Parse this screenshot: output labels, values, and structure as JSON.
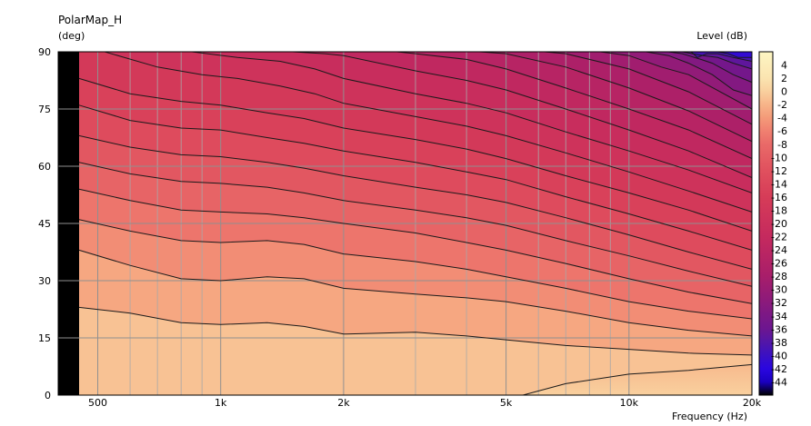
{
  "chart_data": {
    "type": "heatmap",
    "title": "PolarMap_H",
    "ylabel": "(deg)",
    "xlabel": "Frequency  (Hz)",
    "colorbar_label": "Level  (dB)",
    "x_scale": "log",
    "xlim": [
      400,
      20000
    ],
    "ylim": [
      0,
      90
    ],
    "x_ticks": [
      {
        "value": 500,
        "label": "500"
      },
      {
        "value": 1000,
        "label": "1k"
      },
      {
        "value": 2000,
        "label": "2k"
      },
      {
        "value": 5000,
        "label": "5k"
      },
      {
        "value": 10000,
        "label": "10k"
      },
      {
        "value": 20000,
        "label": "20k"
      }
    ],
    "x_minor_gridlines": [
      600,
      700,
      800,
      900,
      3000,
      4000,
      6000,
      7000,
      8000,
      9000
    ],
    "y_ticks": [
      {
        "value": 0,
        "label": "0"
      },
      {
        "value": 15,
        "label": "15"
      },
      {
        "value": 30,
        "label": "30"
      },
      {
        "value": 45,
        "label": "45"
      },
      {
        "value": 60,
        "label": "60"
      },
      {
        "value": 75,
        "label": "75"
      },
      {
        "value": 90,
        "label": "90"
      }
    ],
    "grid": true,
    "no_data_below_hz": 450,
    "contour_levels_db": [
      4,
      2,
      0,
      -2,
      -4,
      -6,
      -8,
      -10,
      -12,
      -14,
      -16,
      -18,
      -20,
      -22,
      -24,
      -26,
      -28,
      -30,
      -32,
      -34,
      -36,
      -38,
      -40,
      -42,
      -44
    ],
    "colorbar_top_db": 6,
    "colorbar_bottom_db": -46,
    "colorbar_stops": [
      {
        "db": 6,
        "color": "#fdf6c3"
      },
      {
        "db": 2,
        "color": "#fbe4b0"
      },
      {
        "db": 0,
        "color": "#f9d09e"
      },
      {
        "db": -2,
        "color": "#f7b489"
      },
      {
        "db": -4,
        "color": "#f49a79"
      },
      {
        "db": -6,
        "color": "#f08070"
      },
      {
        "db": -8,
        "color": "#e96a68"
      },
      {
        "db": -12,
        "color": "#e0505e"
      },
      {
        "db": -16,
        "color": "#d63c58"
      },
      {
        "db": -22,
        "color": "#c52a5e"
      },
      {
        "db": -28,
        "color": "#a81e6a"
      },
      {
        "db": -32,
        "color": "#8a1a7c"
      },
      {
        "db": -36,
        "color": "#6c1690"
      },
      {
        "db": -38,
        "color": "#5216a8"
      },
      {
        "db": -40,
        "color": "#3a10c4"
      },
      {
        "db": -42,
        "color": "#2a06e0"
      },
      {
        "db": -44,
        "color": "#1a00c0"
      },
      {
        "db": -46,
        "color": "#000000"
      }
    ],
    "contours": [
      {
        "level_db": 0,
        "points": [
          [
            5500,
            0
          ],
          [
            7000,
            3
          ],
          [
            10000,
            5.5
          ],
          [
            14000,
            6.5
          ],
          [
            20000,
            8
          ]
        ]
      },
      {
        "level_db": -2,
        "points": [
          [
            450,
            23
          ],
          [
            600,
            21.5
          ],
          [
            800,
            19
          ],
          [
            1000,
            18.5
          ],
          [
            1300,
            19
          ],
          [
            1600,
            18
          ],
          [
            2000,
            16
          ],
          [
            3000,
            16.5
          ],
          [
            4000,
            15.5
          ],
          [
            5000,
            14.5
          ],
          [
            7000,
            13
          ],
          [
            10000,
            12
          ],
          [
            14000,
            11
          ],
          [
            20000,
            10.5
          ]
        ]
      },
      {
        "level_db": -4,
        "points": [
          [
            450,
            38
          ],
          [
            600,
            34
          ],
          [
            800,
            30.5
          ],
          [
            1000,
            30
          ],
          [
            1300,
            31
          ],
          [
            1600,
            30.5
          ],
          [
            2000,
            28
          ],
          [
            3000,
            26.5
          ],
          [
            4000,
            25.5
          ],
          [
            5000,
            24.5
          ],
          [
            7000,
            22
          ],
          [
            10000,
            19
          ],
          [
            14000,
            17
          ],
          [
            20000,
            15.5
          ]
        ]
      },
      {
        "level_db": -6,
        "points": [
          [
            450,
            46
          ],
          [
            600,
            43
          ],
          [
            800,
            40.5
          ],
          [
            1000,
            40
          ],
          [
            1300,
            40.5
          ],
          [
            1600,
            39.5
          ],
          [
            2000,
            37
          ],
          [
            3000,
            35
          ],
          [
            4000,
            33
          ],
          [
            5000,
            31
          ],
          [
            7000,
            28
          ],
          [
            10000,
            24.5
          ],
          [
            14000,
            22
          ],
          [
            20000,
            20
          ]
        ]
      },
      {
        "level_db": -8,
        "points": [
          [
            450,
            54
          ],
          [
            600,
            51
          ],
          [
            800,
            48.5
          ],
          [
            1000,
            48
          ],
          [
            1300,
            47.5
          ],
          [
            1600,
            46.5
          ],
          [
            2000,
            45
          ],
          [
            3000,
            42.5
          ],
          [
            4000,
            40
          ],
          [
            5000,
            38
          ],
          [
            7000,
            34.5
          ],
          [
            10000,
            30.5
          ],
          [
            14000,
            27
          ],
          [
            20000,
            24
          ]
        ]
      },
      {
        "level_db": -10,
        "points": [
          [
            450,
            61
          ],
          [
            600,
            58
          ],
          [
            800,
            56
          ],
          [
            1000,
            55.5
          ],
          [
            1300,
            54.5
          ],
          [
            1600,
            53
          ],
          [
            2000,
            51
          ],
          [
            3000,
            48.5
          ],
          [
            4000,
            46.5
          ],
          [
            5000,
            44.5
          ],
          [
            7000,
            40.5
          ],
          [
            10000,
            36.5
          ],
          [
            14000,
            32.5
          ],
          [
            20000,
            28.5
          ]
        ]
      },
      {
        "level_db": -12,
        "points": [
          [
            450,
            68
          ],
          [
            600,
            65
          ],
          [
            800,
            63
          ],
          [
            1000,
            62.5
          ],
          [
            1300,
            61
          ],
          [
            1600,
            59.5
          ],
          [
            2000,
            57.5
          ],
          [
            3000,
            54.5
          ],
          [
            4000,
            52.5
          ],
          [
            5000,
            50.5
          ],
          [
            7000,
            46.5
          ],
          [
            10000,
            42
          ],
          [
            14000,
            37.5
          ],
          [
            20000,
            33
          ]
        ]
      },
      {
        "level_db": -14,
        "points": [
          [
            450,
            76
          ],
          [
            600,
            72
          ],
          [
            800,
            70
          ],
          [
            1000,
            69.5
          ],
          [
            1300,
            67.5
          ],
          [
            1600,
            66
          ],
          [
            2000,
            64
          ],
          [
            3000,
            61
          ],
          [
            4000,
            58.5
          ],
          [
            5000,
            56.5
          ],
          [
            7000,
            52
          ],
          [
            10000,
            47.5
          ],
          [
            14000,
            43
          ],
          [
            20000,
            38
          ]
        ]
      },
      {
        "level_db": -16,
        "points": [
          [
            450,
            83
          ],
          [
            600,
            79
          ],
          [
            800,
            77
          ],
          [
            1000,
            76
          ],
          [
            1300,
            74
          ],
          [
            1600,
            72.5
          ],
          [
            2000,
            70
          ],
          [
            3000,
            67
          ],
          [
            4000,
            64.5
          ],
          [
            5000,
            62
          ],
          [
            7000,
            57.5
          ],
          [
            10000,
            53
          ],
          [
            14000,
            48.5
          ],
          [
            20000,
            43
          ]
        ]
      },
      {
        "level_db": -18,
        "points": [
          [
            520,
            90
          ],
          [
            700,
            86
          ],
          [
            900,
            84
          ],
          [
            1100,
            83
          ],
          [
            1400,
            81
          ],
          [
            1700,
            79
          ],
          [
            2000,
            76.5
          ],
          [
            3000,
            73
          ],
          [
            4000,
            70.5
          ],
          [
            5000,
            68
          ],
          [
            7000,
            63.5
          ],
          [
            10000,
            58.5
          ],
          [
            14000,
            53.5
          ],
          [
            20000,
            48
          ]
        ]
      },
      {
        "level_db": -20,
        "points": [
          [
            850,
            90
          ],
          [
            1100,
            88.5
          ],
          [
            1400,
            87.5
          ],
          [
            1700,
            85.5
          ],
          [
            2000,
            83
          ],
          [
            3000,
            79
          ],
          [
            4000,
            76.5
          ],
          [
            5000,
            74
          ],
          [
            7000,
            69
          ],
          [
            10000,
            64
          ],
          [
            14000,
            59
          ],
          [
            20000,
            53
          ]
        ]
      },
      {
        "level_db": -22,
        "points": [
          [
            1500,
            90
          ],
          [
            1800,
            89.5
          ],
          [
            2000,
            89
          ],
          [
            3000,
            85
          ],
          [
            4000,
            82.5
          ],
          [
            5000,
            80
          ],
          [
            7000,
            75
          ],
          [
            10000,
            69.5
          ],
          [
            14000,
            64
          ],
          [
            20000,
            57
          ]
        ]
      },
      {
        "level_db": -24,
        "points": [
          [
            2700,
            90
          ],
          [
            3000,
            89.5
          ],
          [
            4000,
            88
          ],
          [
            5000,
            85.5
          ],
          [
            7000,
            80.5
          ],
          [
            10000,
            75
          ],
          [
            14000,
            69.5
          ],
          [
            20000,
            62
          ]
        ]
      },
      {
        "level_db": -26,
        "points": [
          [
            4300,
            90
          ],
          [
            5000,
            89.5
          ],
          [
            7000,
            86
          ],
          [
            10000,
            80.5
          ],
          [
            14000,
            74.5
          ],
          [
            20000,
            66.5
          ]
        ]
      },
      {
        "level_db": -28,
        "points": [
          [
            6200,
            90
          ],
          [
            7000,
            89.5
          ],
          [
            10000,
            85.5
          ],
          [
            14000,
            79.5
          ],
          [
            20000,
            71
          ]
        ]
      },
      {
        "level_db": -30,
        "points": [
          [
            8500,
            90
          ],
          [
            10000,
            89
          ],
          [
            12000,
            86
          ],
          [
            14000,
            84
          ],
          [
            20000,
            75
          ]
        ]
      },
      {
        "level_db": -32,
        "points": [
          [
            11000,
            90
          ],
          [
            12500,
            89
          ],
          [
            14000,
            87
          ],
          [
            16000,
            84
          ],
          [
            18000,
            80
          ],
          [
            20000,
            78.5
          ]
        ]
      },
      {
        "level_db": -34,
        "points": [
          [
            12500,
            90
          ],
          [
            13500,
            89.5
          ],
          [
            15000,
            88
          ],
          [
            16000,
            87
          ],
          [
            18000,
            84
          ],
          [
            20000,
            82
          ]
        ]
      },
      {
        "level_db": -36,
        "points": [
          [
            13500,
            90
          ],
          [
            14300,
            89.5
          ],
          [
            15200,
            89
          ],
          [
            16500,
            88.5
          ],
          [
            18000,
            87
          ],
          [
            20000,
            85.5
          ]
        ]
      },
      {
        "level_db": -38,
        "points": [
          [
            14200,
            90
          ],
          [
            14700,
            88.5
          ],
          [
            15500,
            89.5
          ],
          [
            16500,
            89.5
          ],
          [
            18000,
            88.5
          ],
          [
            20000,
            87.5
          ]
        ]
      },
      {
        "level_db": -40,
        "points": [
          [
            16500,
            90
          ],
          [
            17500,
            89.5
          ],
          [
            18500,
            88.5
          ],
          [
            20000,
            88.5
          ]
        ]
      }
    ]
  }
}
